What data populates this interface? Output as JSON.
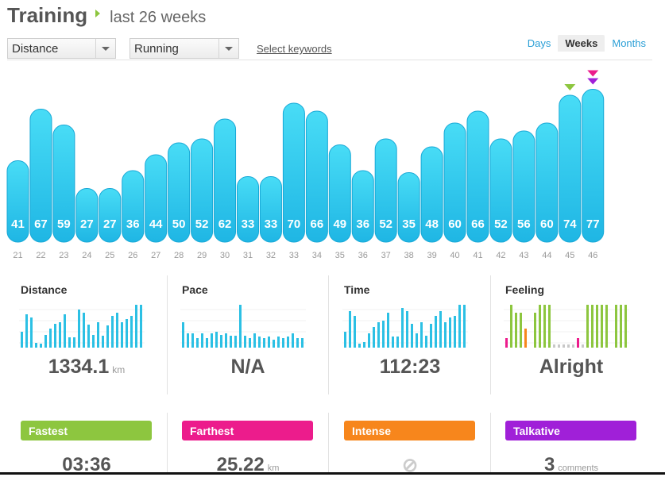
{
  "header": {
    "title": "Training",
    "subtitle": "last 26 weeks"
  },
  "filters": {
    "metric": "Distance",
    "sport": "Running",
    "keywords_link": "Select keywords"
  },
  "period_tabs": [
    "Days",
    "Weeks",
    "Months"
  ],
  "active_period": "Weeks",
  "colors": {
    "bar_top": "#48dcf6",
    "bar_bottom": "#1fb6e4",
    "bar_stroke": "#18a8d6",
    "green": "#8dc63f",
    "pink": "#ec1c8c",
    "orange": "#f7861c",
    "purple": "#a020d8",
    "link_blue": "#2a9fd6"
  },
  "chart_data": {
    "type": "bar",
    "categories": [
      "21",
      "22",
      "23",
      "24",
      "25",
      "26",
      "27",
      "28",
      "29",
      "30",
      "31",
      "32",
      "33",
      "34",
      "35",
      "36",
      "37",
      "38",
      "39",
      "40",
      "41",
      "42",
      "43",
      "44",
      "45",
      "46"
    ],
    "values": [
      41,
      67,
      59,
      27,
      27,
      36,
      44,
      50,
      52,
      62,
      33,
      33,
      70,
      66,
      49,
      36,
      52,
      35,
      48,
      60,
      66,
      52,
      56,
      60,
      74,
      77
    ],
    "markers": [
      {
        "category": "45",
        "color": "green"
      },
      {
        "category": "46",
        "color": "purple"
      },
      {
        "category": "46",
        "color": "pink"
      }
    ]
  },
  "stats": [
    {
      "title": "Distance",
      "value": "1334.1",
      "unit": "km",
      "sparkline": [
        20,
        42,
        38,
        6,
        5,
        16,
        24,
        30,
        32,
        42,
        13,
        13,
        48,
        44,
        29,
        16,
        32,
        15,
        28,
        40,
        44,
        32,
        36,
        40,
        54,
        54
      ]
    },
    {
      "title": "Pace",
      "value": "N/A",
      "unit": "",
      "sparkline": [
        32,
        18,
        18,
        12,
        18,
        12,
        18,
        20,
        16,
        18,
        15,
        15,
        54,
        15,
        12,
        18,
        14,
        12,
        14,
        10,
        14,
        12,
        14,
        18,
        12,
        12
      ]
    },
    {
      "title": "Time",
      "value": "112:23",
      "unit": "",
      "sparkline": [
        20,
        46,
        40,
        5,
        7,
        18,
        26,
        32,
        34,
        44,
        14,
        14,
        50,
        46,
        30,
        18,
        32,
        15,
        30,
        40,
        46,
        32,
        38,
        40,
        54,
        54
      ]
    },
    {
      "title": "Feeling",
      "value": "Alright",
      "unit": "",
      "sparkline": [
        12,
        54,
        44,
        44,
        24,
        0,
        44,
        54,
        54,
        54,
        4,
        4,
        4,
        4,
        4,
        12,
        4,
        54,
        54,
        54,
        54,
        54,
        0,
        54,
        54,
        54
      ],
      "sparkline_colors": [
        "pink",
        "green",
        "green",
        "green",
        "orange",
        "none",
        "green",
        "green",
        "green",
        "green",
        "grey",
        "grey",
        "grey",
        "grey",
        "grey",
        "pink",
        "grey",
        "green",
        "green",
        "green",
        "green",
        "green",
        "none",
        "green",
        "green",
        "green"
      ]
    }
  ],
  "badges": [
    {
      "label": "Fastest",
      "color": "green",
      "value": "03:36",
      "unit": ""
    },
    {
      "label": "Farthest",
      "color": "pink",
      "value": "25.22",
      "unit": "km"
    },
    {
      "label": "Intense",
      "color": "orange",
      "value": "⊘",
      "unit": ""
    },
    {
      "label": "Talkative",
      "color": "purple",
      "value": "3",
      "unit": "comments"
    }
  ]
}
